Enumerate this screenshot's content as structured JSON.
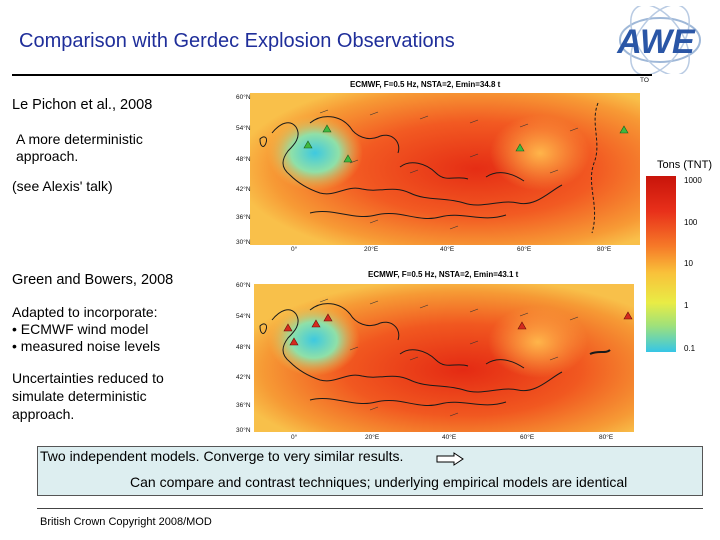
{
  "header": {
    "title": "Comparison with Gerdec Explosion Observations",
    "logo_text": "AWE"
  },
  "left": {
    "section1_heading": "Le Pichon et al., 2008",
    "section1_body": [
      "A more deterministic",
      "approach."
    ],
    "section1_note": "(see Alexis' talk)",
    "section2_heading": "Green and Bowers, 2008",
    "section2_body": [
      "Adapted to incorporate:",
      "• ECMWF wind model",
      "• measured noise levels"
    ],
    "section2_body2": [
      "Uncertainties reduced to",
      "simulate deterministic",
      "approach."
    ]
  },
  "maps": {
    "top": {
      "title": "ECMWF, F=0.5 Hz, NSTA=2, Emin=34.8 t",
      "corner_label": "TO",
      "lat_ticks": [
        "60°N",
        "54°N",
        "48°N",
        "42°N",
        "36°N",
        "30°N"
      ],
      "lon_ticks": [
        "0°",
        "20°E",
        "40°E",
        "60°E",
        "80°E"
      ],
      "station_color": "#3fb93f"
    },
    "bottom": {
      "title": "ECMWF, F=0.5 Hz, NSTA=2, Emin=43.1 t",
      "lat_ticks": [
        "60°N",
        "54°N",
        "48°N",
        "42°N",
        "36°N",
        "30°N"
      ],
      "lon_ticks": [
        "0°",
        "20°E",
        "40°E",
        "60°E",
        "80°E"
      ],
      "station_color": "#d42a1e"
    }
  },
  "colorbar": {
    "title": "Tons (TNT)",
    "labels": [
      "1000",
      "100",
      "10",
      "1",
      "0.1"
    ]
  },
  "summary": {
    "line1": "Two independent models. Converge to very similar results.",
    "line2": "Can compare and contrast techniques; underlying empirical models are identical"
  },
  "footer": {
    "copyright": "British Crown Copyright 2008/MOD"
  }
}
